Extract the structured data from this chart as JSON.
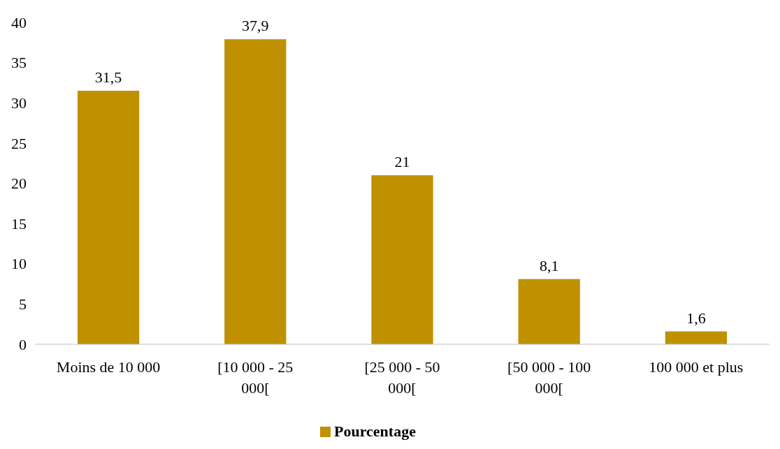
{
  "chart_data": {
    "type": "bar",
    "categories": [
      "Moins de 10 000",
      "[10 000 - 25 000[",
      "[25 000 - 50 000[",
      "[50 000 - 100 000[",
      "100 000 et plus"
    ],
    "series": [
      {
        "name": "Pourcentage",
        "color": "#bf9000",
        "values": [
          31.5,
          37.9,
          21,
          8.1,
          1.6
        ],
        "value_labels": [
          "31,5",
          "37,9",
          "21",
          "8,1",
          "1,6"
        ]
      }
    ],
    "ylim": [
      0,
      40
    ],
    "yticks": [
      0,
      5,
      10,
      15,
      20,
      25,
      30,
      35,
      40
    ],
    "grid": false,
    "legend": "bottom"
  }
}
